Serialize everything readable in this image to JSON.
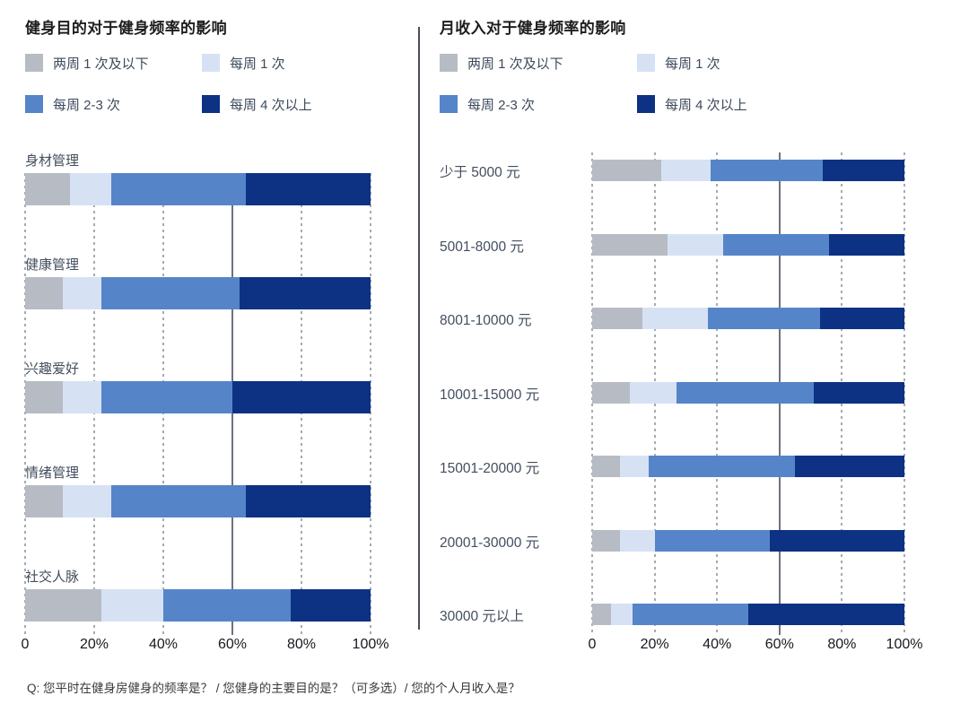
{
  "page": {
    "footer": "Q: 您平时在健身房健身的频率是？ / 您健身的主要目的是？（可多选）/ 您的个人月收入是？"
  },
  "colors": {
    "series": [
      "#b7bcc4",
      "#d6e2f4",
      "#5585c8",
      "#0d3183"
    ],
    "grid_dotted": "#a5abb4",
    "grid_solid": "#6d737d",
    "divider": "#4a4f55"
  },
  "chart_data": [
    {
      "type": "bar",
      "variant": "horizontal-stacked-100pct",
      "title": "健身目的对于健身频率的影响",
      "legend": [
        "两周 1 次及以下",
        "每周 1 次",
        "每周 2-3 次",
        "每周 4 次以上"
      ],
      "legend_position": "top",
      "label_placement": "above-bar",
      "categories": [
        "身材管理",
        "健康管理",
        "兴趣爱好",
        "情绪管理",
        "社交人脉"
      ],
      "series": [
        {
          "name": "两周 1 次及以下",
          "values": [
            13,
            11,
            11,
            11,
            22
          ]
        },
        {
          "name": "每周 1 次",
          "values": [
            12,
            11,
            11,
            14,
            18
          ]
        },
        {
          "name": "每周 2-3 次",
          "values": [
            39,
            40,
            38,
            39,
            37
          ]
        },
        {
          "name": "每周 4 次以上",
          "values": [
            36,
            38,
            40,
            36,
            23
          ]
        }
      ],
      "x_ticks": [
        "0",
        "20%",
        "40%",
        "60%",
        "80%",
        "100%"
      ],
      "xlim": [
        0,
        100
      ],
      "grid": true,
      "emphasized_gridline": "60%"
    },
    {
      "type": "bar",
      "variant": "horizontal-stacked-100pct",
      "title": "月收入对于健身频率的影响",
      "legend": [
        "两周 1 次及以下",
        "每周 1 次",
        "每周 2-3 次",
        "每周 4 次以上"
      ],
      "legend_position": "top",
      "label_placement": "left-of-bar",
      "categories": [
        "少于 5000 元",
        "5001-8000 元",
        "8001-10000 元",
        "10001-15000 元",
        "15001-20000 元",
        "20001-30000 元",
        "30000 元以上"
      ],
      "series": [
        {
          "name": "两周 1 次及以下",
          "values": [
            22,
            24,
            16,
            12,
            9,
            9,
            6
          ]
        },
        {
          "name": "每周 1 次",
          "values": [
            16,
            18,
            21,
            15,
            9,
            11,
            7
          ]
        },
        {
          "name": "每周 2-3 次",
          "values": [
            36,
            34,
            36,
            44,
            47,
            37,
            37
          ]
        },
        {
          "name": "每周 4 次以上",
          "values": [
            26,
            24,
            27,
            29,
            35,
            43,
            50
          ]
        }
      ],
      "x_ticks": [
        "0",
        "20%",
        "40%",
        "60%",
        "80%",
        "100%"
      ],
      "xlim": [
        0,
        100
      ],
      "grid": true,
      "emphasized_gridline": "60%"
    }
  ]
}
